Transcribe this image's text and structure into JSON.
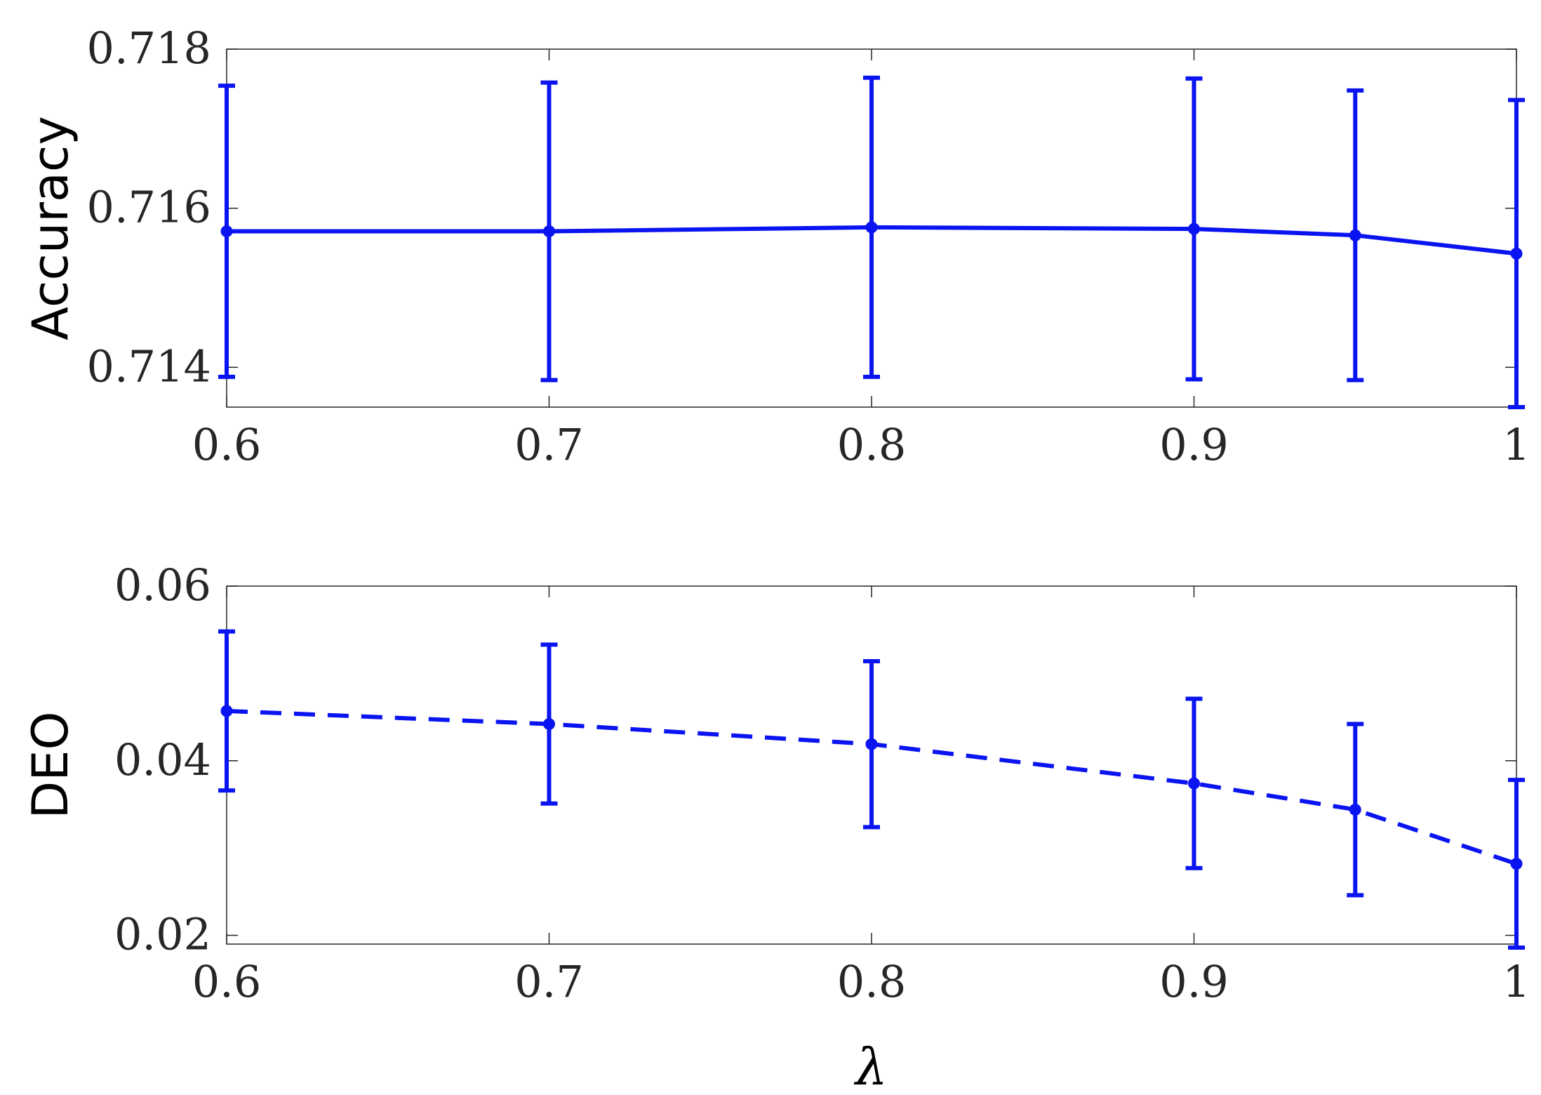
{
  "colors": {
    "series": "#0a14f0",
    "axis": "#262626"
  },
  "chart_data": [
    {
      "type": "line",
      "ylabel": "Accuracy",
      "xlabel": "",
      "xlim": [
        0.6,
        1.0
      ],
      "ylim": [
        0.7135,
        0.718
      ],
      "xticks": [
        0.6,
        0.7,
        0.8,
        0.9,
        1.0
      ],
      "xtick_labels": [
        "0.6",
        "0.7",
        "0.8",
        "0.9",
        "1"
      ],
      "yticks": [
        0.714,
        0.716,
        0.718
      ],
      "ytick_labels": [
        "0.714",
        "0.716",
        "0.718"
      ],
      "grid": false,
      "line_style": "solid",
      "marker": "circle",
      "x": [
        0.6,
        0.7,
        0.8,
        0.9,
        0.95,
        1.0
      ],
      "y": [
        0.71571,
        0.71571,
        0.71576,
        0.71574,
        0.71566,
        0.71543
      ],
      "err": [
        0.00183,
        0.00187,
        0.00188,
        0.00189,
        0.00182,
        0.00193
      ]
    },
    {
      "type": "line",
      "ylabel": "DEO",
      "xlabel": "λ",
      "xlim": [
        0.6,
        1.0
      ],
      "ylim": [
        0.019,
        0.06
      ],
      "xticks": [
        0.6,
        0.7,
        0.8,
        0.9,
        1.0
      ],
      "xtick_labels": [
        "0.6",
        "0.7",
        "0.8",
        "0.9",
        "1"
      ],
      "yticks": [
        0.02,
        0.04,
        0.06
      ],
      "ytick_labels": [
        "0.02",
        "0.04",
        "0.06"
      ],
      "grid": false,
      "line_style": "dashed",
      "marker": "circle",
      "x": [
        0.6,
        0.7,
        0.8,
        0.9,
        0.95,
        1.0
      ],
      "y": [
        0.0457,
        0.0442,
        0.0419,
        0.0374,
        0.0344,
        0.0282
      ],
      "err": [
        0.0091,
        0.0091,
        0.0095,
        0.0097,
        0.0098,
        0.0096
      ]
    }
  ]
}
